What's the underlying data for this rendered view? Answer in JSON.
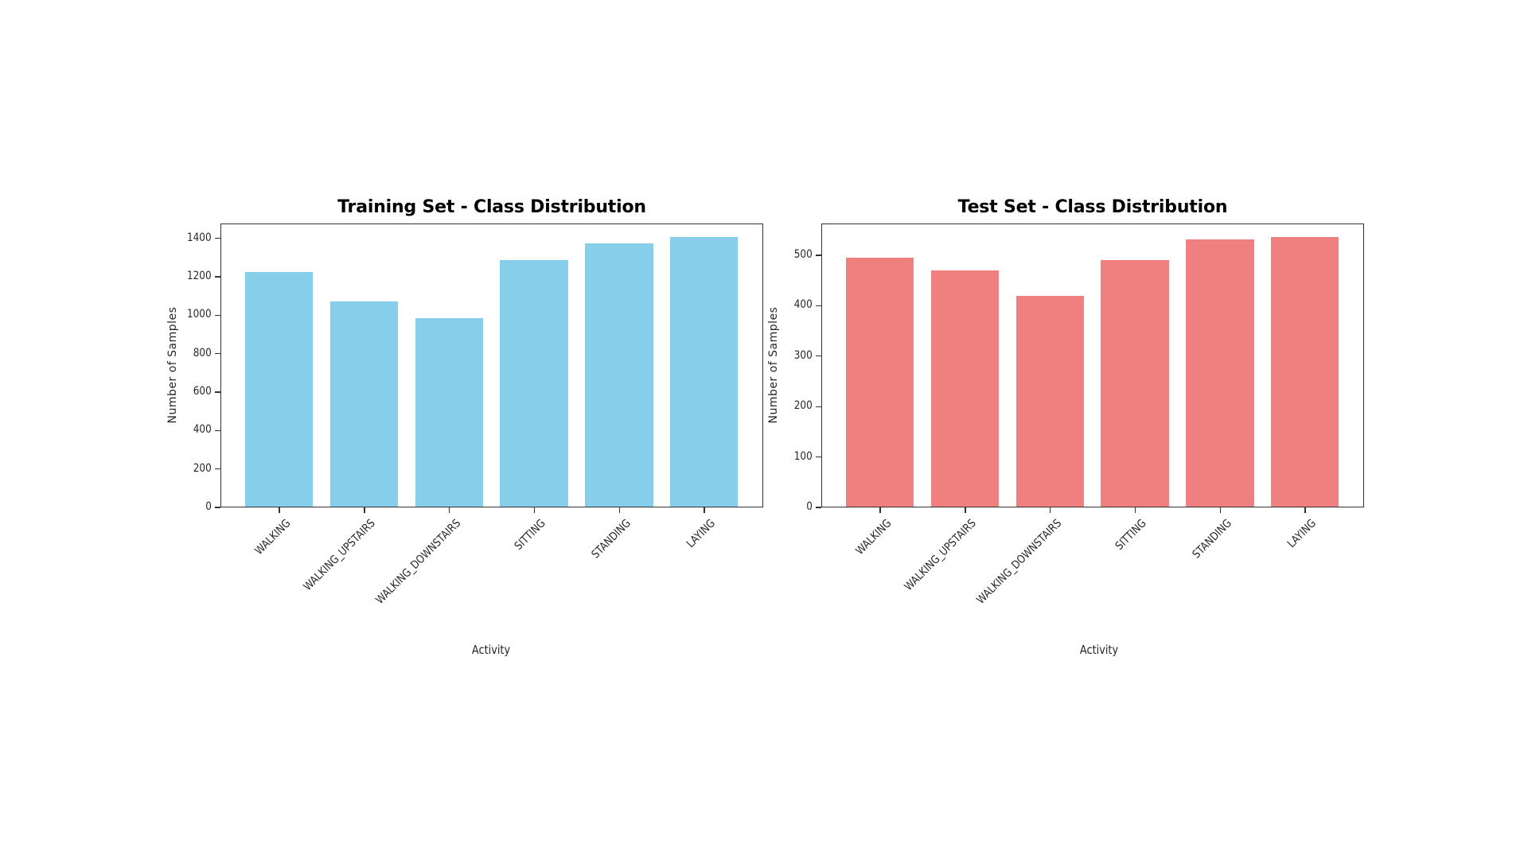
{
  "figure": {
    "panels": [
      {
        "title": "Training Set - Class Distribution",
        "xlabel": "Activity",
        "ylabel": "Number of Samples",
        "color": "#87CEEB",
        "ylim": [
          0,
          1477
        ],
        "yticks": [
          0,
          200,
          400,
          600,
          800,
          1000,
          1200,
          1400
        ]
      },
      {
        "title": "Test Set - Class Distribution",
        "xlabel": "Activity",
        "ylabel": "Number of Samples",
        "color": "#F08080",
        "ylim": [
          0,
          563
        ],
        "yticks": [
          0,
          100,
          200,
          300,
          400,
          500
        ]
      }
    ]
  },
  "chart_data": [
    {
      "type": "bar",
      "title": "Training Set - Class Distribution",
      "xlabel": "Activity",
      "ylabel": "Number of Samples",
      "categories": [
        "WALKING",
        "WALKING_UPSTAIRS",
        "WALKING_DOWNSTAIRS",
        "SITTING",
        "STANDING",
        "LAYING"
      ],
      "values": [
        1226,
        1073,
        986,
        1286,
        1374,
        1407
      ],
      "color": "#87CEEB",
      "ylim": [
        0,
        1477
      ],
      "yticks": [
        0,
        200,
        400,
        600,
        800,
        1000,
        1200,
        1400
      ],
      "grid": false,
      "legend": null,
      "xtick_rotation": 45
    },
    {
      "type": "bar",
      "title": "Test Set - Class Distribution",
      "xlabel": "Activity",
      "ylabel": "Number of Samples",
      "categories": [
        "WALKING",
        "WALKING_UPSTAIRS",
        "WALKING_DOWNSTAIRS",
        "SITTING",
        "STANDING",
        "LAYING"
      ],
      "values": [
        496,
        471,
        420,
        491,
        532,
        537
      ],
      "color": "#F08080",
      "ylim": [
        0,
        563
      ],
      "yticks": [
        0,
        100,
        200,
        300,
        400,
        500
      ],
      "grid": false,
      "legend": null,
      "xtick_rotation": 45
    }
  ]
}
